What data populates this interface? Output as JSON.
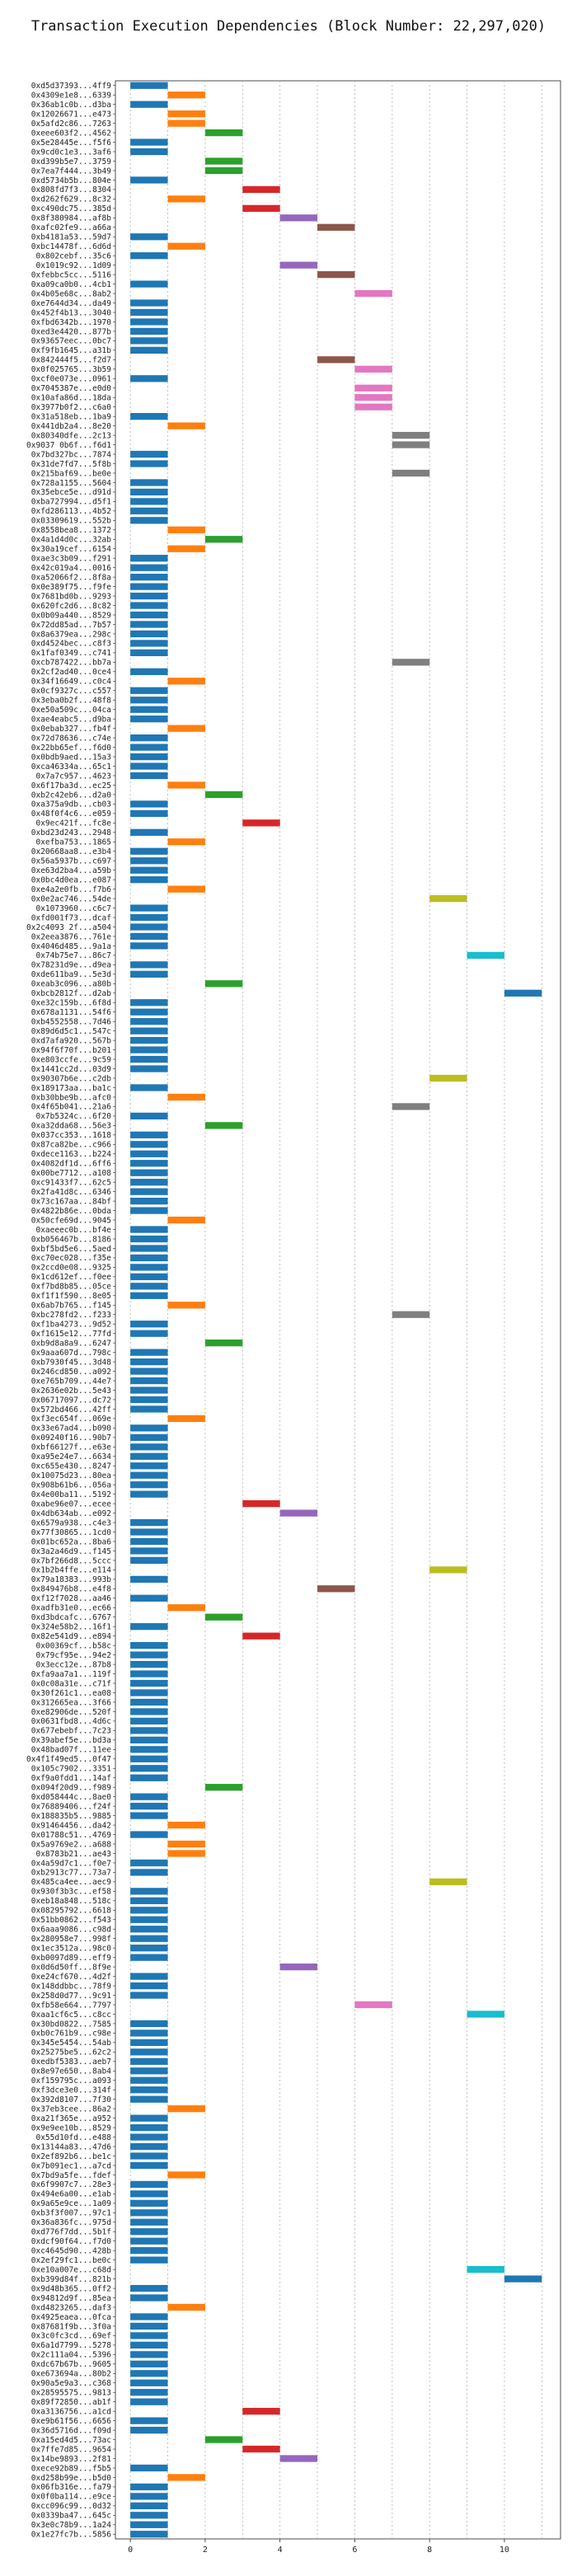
{
  "chart_data": {
    "type": "bar",
    "subtype": "gantt",
    "title": "Transaction Execution Dependencies (Block Number: 22,297,020)",
    "xlabel": "",
    "ylabel": "",
    "xlim": [
      -0.4,
      11.5
    ],
    "x_ticks": [
      0,
      2,
      4,
      6,
      8,
      10
    ],
    "x_tick_labels": [
      "0",
      "2",
      "4",
      "6",
      "8",
      "10"
    ],
    "grid": true,
    "legend": "none",
    "bar_duration": 1,
    "palette": [
      "#1f77b4",
      "#ff7f0e",
      "#2ca02c",
      "#d62728",
      "#9467bd",
      "#8c564b",
      "#e377c2",
      "#7f7f7f",
      "#bcbd22",
      "#17becf"
    ],
    "transactions": [
      {
        "label": "0xd5d37393...4ff9",
        "start": 0
      },
      {
        "label": "0x4309e1e8...6339",
        "start": 1
      },
      {
        "label": "0x36ab1c0b...d3ba",
        "start": 0
      },
      {
        "label": "0x12026671...e473",
        "start": 1
      },
      {
        "label": "0x5afd2c86...7263",
        "start": 1
      },
      {
        "label": "0xeee603f2...4562",
        "start": 2
      },
      {
        "label": "0x5e28445e...f5f6",
        "start": 0
      },
      {
        "label": "0x9cd0c1e3...3af6",
        "start": 0
      },
      {
        "label": "0xd399b5e7...3759",
        "start": 2
      },
      {
        "label": "0x7ea7f444...3b49",
        "start": 2
      },
      {
        "label": "0xd5734b5b...804e",
        "start": 0
      },
      {
        "label": "0x808fd7f3...8304",
        "start": 3
      },
      {
        "label": "0xd262f629...8c32",
        "start": 1
      },
      {
        "label": "0xc490dc75...385d",
        "start": 3
      },
      {
        "label": "0x8f380984...af8b",
        "start": 4
      },
      {
        "label": "0xafc02fe9...a66a",
        "start": 5
      },
      {
        "label": "0xb4181a53...59d7",
        "start": 0
      },
      {
        "label": "0xbc14478f...6d6d",
        "start": 1
      },
      {
        "label": "0x802cebf...35c6",
        "start": 0
      },
      {
        "label": "0x1019c92...1d09",
        "start": 4
      },
      {
        "label": "0xfebbc5cc...5116",
        "start": 5
      },
      {
        "label": "0xa09ca0b0...4cb1",
        "start": 0
      },
      {
        "label": "0x4b05e68c...8ab2",
        "start": 6
      },
      {
        "label": "0xe7644d34...da49",
        "start": 0
      },
      {
        "label": "0x452f4b13...3040",
        "start": 0
      },
      {
        "label": "0xfbd6342b...1970",
        "start": 0
      },
      {
        "label": "0xed3e4420...877b",
        "start": 0
      },
      {
        "label": "0x93657eec...0bc7",
        "start": 0
      },
      {
        "label": "0xf9fb1645...a31b",
        "start": 0
      },
      {
        "label": "0x842444f5...f2d7",
        "start": 5
      },
      {
        "label": "0x0f025765...3b59",
        "start": 6
      },
      {
        "label": "0xcf0e073e...0961",
        "start": 0
      },
      {
        "label": "0x7045387e...e0d0",
        "start": 6
      },
      {
        "label": "0x10afa86d...18da",
        "start": 6
      },
      {
        "label": "0x3977b0f2...c6a0",
        "start": 6
      },
      {
        "label": "0x31a518eb...1ba9",
        "start": 0
      },
      {
        "label": "0x441db2a4...8e20",
        "start": 1
      },
      {
        "label": "0x80340dfe...2c13",
        "start": 7
      },
      {
        "label": "0x9037 0b6f...f6d1",
        "start": 7
      },
      {
        "label": "0x7bd327bc...7874",
        "start": 0
      },
      {
        "label": "0x31de7fd7...5f8b",
        "start": 0
      },
      {
        "label": "0x215baf69...be0e",
        "start": 7
      },
      {
        "label": "0x728a1155...5604",
        "start": 0
      },
      {
        "label": "0x35ebce5e...d91d",
        "start": 0
      },
      {
        "label": "0xba727994...d5f1",
        "start": 0
      },
      {
        "label": "0xfd286113...4b52",
        "start": 0
      },
      {
        "label": "0x03309619...552b",
        "start": 0
      },
      {
        "label": "0x8558bea8...1372",
        "start": 1
      },
      {
        "label": "0x4a1d4d0c...32ab",
        "start": 2
      },
      {
        "label": "0x30a19cef...6154",
        "start": 1
      },
      {
        "label": "0xae3c3b09...f291",
        "start": 0
      },
      {
        "label": "0x42c019a4...0016",
        "start": 0
      },
      {
        "label": "0xa52066f2...8f8a",
        "start": 0
      },
      {
        "label": "0x0e389f75...f9fe",
        "start": 0
      },
      {
        "label": "0x7681bd0b...9293",
        "start": 0
      },
      {
        "label": "0x620fc2d6...8c82",
        "start": 0
      },
      {
        "label": "0x0b09a440...8529",
        "start": 0
      },
      {
        "label": "0x72dd85ad...7b57",
        "start": 0
      },
      {
        "label": "0x8a6379ea...298c",
        "start": 0
      },
      {
        "label": "0xd4524bec...c8f3",
        "start": 0
      },
      {
        "label": "0x1faf0349...c741",
        "start": 0
      },
      {
        "label": "0xcb787422...bb7a",
        "start": 7
      },
      {
        "label": "0x2cf2ad40...0ce4",
        "start": 0
      },
      {
        "label": "0x34f16649...c0c4",
        "start": 1
      },
      {
        "label": "0x0cf9327c...c557",
        "start": 0
      },
      {
        "label": "0x3eba0b2f...48f8",
        "start": 0
      },
      {
        "label": "0xe50a509c...04ca",
        "start": 0
      },
      {
        "label": "0xae4eabc5...d9ba",
        "start": 0
      },
      {
        "label": "0x0ebab327...fb4f",
        "start": 1
      },
      {
        "label": "0x72d78636...c74e",
        "start": 0
      },
      {
        "label": "0x22bb65ef...f6d0",
        "start": 0
      },
      {
        "label": "0x0bdb9aed...15a3",
        "start": 0
      },
      {
        "label": "0xca46334a...65c1",
        "start": 0
      },
      {
        "label": "0x7a7c957...4623",
        "start": 0
      },
      {
        "label": "0x6f17ba3d...ec25",
        "start": 1
      },
      {
        "label": "0xb2c42eb6...d2a0",
        "start": 2
      },
      {
        "label": "0xa375a9db...cb03",
        "start": 0
      },
      {
        "label": "0x48f0f4c6...e059",
        "start": 0
      },
      {
        "label": "0x9ec421f...fc8e",
        "start": 3
      },
      {
        "label": "0xbd23d243...2948",
        "start": 0
      },
      {
        "label": "0xefba753...1865",
        "start": 1
      },
      {
        "label": "0x20668aa8...e3b4",
        "start": 0
      },
      {
        "label": "0x56a5937b...c697",
        "start": 0
      },
      {
        "label": "0xe63d2ba4...a59b",
        "start": 0
      },
      {
        "label": "0x0bc4d0ea...e087",
        "start": 0
      },
      {
        "label": "0xe4a2e0fb...f7b6",
        "start": 1
      },
      {
        "label": "0x0e2ac746...54de",
        "start": 8
      },
      {
        "label": "0x1073960...c6c7",
        "start": 0
      },
      {
        "label": "0xfd001f73...dcaf",
        "start": 0
      },
      {
        "label": "0x2c4093 2f...a504",
        "start": 0
      },
      {
        "label": "0x2eea3876...761e",
        "start": 0
      },
      {
        "label": "0x4046d485...9a1a",
        "start": 0
      },
      {
        "label": "0x74b75e7...86c7",
        "start": 9
      },
      {
        "label": "0x78231d9e...d9ea",
        "start": 0
      },
      {
        "label": "0xde611ba9...5e3d",
        "start": 0
      },
      {
        "label": "0xeab3c096...a80b",
        "start": 2
      },
      {
        "label": "0xbcb2812f...d2ab",
        "start": 10
      },
      {
        "label": "0xe32c159b...6f8d",
        "start": 0
      },
      {
        "label": "0x678a1131...54f6",
        "start": 0
      },
      {
        "label": "0xb4552558...7d46",
        "start": 0
      },
      {
        "label": "0x89d6d5c1...547c",
        "start": 0
      },
      {
        "label": "0xd7afa920...567b",
        "start": 0
      },
      {
        "label": "0x94f6f70f...b201",
        "start": 0
      },
      {
        "label": "0xe803ccfe...9c59",
        "start": 0
      },
      {
        "label": "0x1441cc2d...03d9",
        "start": 0
      },
      {
        "label": "0x90307b6e...c2db",
        "start": 8
      },
      {
        "label": "0x189173aa...ba1c",
        "start": 0
      },
      {
        "label": "0xb30bbe9b...afc0",
        "start": 1
      },
      {
        "label": "0x4f65b041...21a6",
        "start": 7
      },
      {
        "label": "0x7b5324c...6f20",
        "start": 0
      },
      {
        "label": "0xa32dda68...56e3",
        "start": 2
      },
      {
        "label": "0x037cc353...1618",
        "start": 0
      },
      {
        "label": "0x87ca82be...c966",
        "start": 0
      },
      {
        "label": "0xdece1163...b224",
        "start": 0
      },
      {
        "label": "0x4082df1d...6ff6",
        "start": 0
      },
      {
        "label": "0x00be7712...a108",
        "start": 0
      },
      {
        "label": "0xc91433f7...62c5",
        "start": 0
      },
      {
        "label": "0x2fa41d8c...6346",
        "start": 0
      },
      {
        "label": "0x73c167aa...84bf",
        "start": 0
      },
      {
        "label": "0x4822b86e...0bda",
        "start": 0
      },
      {
        "label": "0x50cfe69d...9045",
        "start": 1
      },
      {
        "label": "0xaeeec0b...bf4e",
        "start": 0
      },
      {
        "label": "0xb056467b...8186",
        "start": 0
      },
      {
        "label": "0xbf5bd5e6...5aed",
        "start": 0
      },
      {
        "label": "0xc70ec028...f35e",
        "start": 0
      },
      {
        "label": "0x2ccd0e08...9325",
        "start": 0
      },
      {
        "label": "0x1cd612ef...f0ee",
        "start": 0
      },
      {
        "label": "0xf7bd8b85...05ce",
        "start": 0
      },
      {
        "label": "0xf1f1f590...8e05",
        "start": 0
      },
      {
        "label": "0x6ab7b765...f145",
        "start": 1
      },
      {
        "label": "0xbc278fd2...f233",
        "start": 7
      },
      {
        "label": "0xf1ba4273...9d52",
        "start": 0
      },
      {
        "label": "0xf1615e12...77fd",
        "start": 0
      },
      {
        "label": "0xb9d8a8a9...6247",
        "start": 2
      },
      {
        "label": "0x9aaa607d...798c",
        "start": 0
      },
      {
        "label": "0xb7930f45...3d48",
        "start": 0
      },
      {
        "label": "0x246cd850...a092",
        "start": 0
      },
      {
        "label": "0xe765b709...44e7",
        "start": 0
      },
      {
        "label": "0x2636e02b...5e43",
        "start": 0
      },
      {
        "label": "0x06717097...dc72",
        "start": 0
      },
      {
        "label": "0x572bd466...42ff",
        "start": 0
      },
      {
        "label": "0xf3ec654f...069e",
        "start": 1
      },
      {
        "label": "0x33e67ad4...b090",
        "start": 0
      },
      {
        "label": "0x09240f16...90b7",
        "start": 0
      },
      {
        "label": "0xbf66127f...e63e",
        "start": 0
      },
      {
        "label": "0xa95e24e7...6634",
        "start": 0
      },
      {
        "label": "0xc655e430...8247",
        "start": 0
      },
      {
        "label": "0x10075d23...80ea",
        "start": 0
      },
      {
        "label": "0x908b61b6...056a",
        "start": 0
      },
      {
        "label": "0x4e00ba11...5192",
        "start": 0
      },
      {
        "label": "0xabe96e07...ecee",
        "start": 3
      },
      {
        "label": "0x4db634ab...e092",
        "start": 4
      },
      {
        "label": "0x6579a938...c4e3",
        "start": 0
      },
      {
        "label": "0x77f30865...1cd0",
        "start": 0
      },
      {
        "label": "0x01bc652a...8ba6",
        "start": 0
      },
      {
        "label": "0x3a2a46d9...f145",
        "start": 0
      },
      {
        "label": "0x7bf266d8...5ccc",
        "start": 0
      },
      {
        "label": "0x1b2b4ffe...e114",
        "start": 8
      },
      {
        "label": "0x79a18383...993b",
        "start": 0
      },
      {
        "label": "0x849476b8...e4f8",
        "start": 5
      },
      {
        "label": "0xf12f7028...aa46",
        "start": 0
      },
      {
        "label": "0xadfb31e0...ec66",
        "start": 1
      },
      {
        "label": "0xd3bdcafc...6767",
        "start": 2
      },
      {
        "label": "0x324e58b2...16f1",
        "start": 0
      },
      {
        "label": "0x82e541d9...e894",
        "start": 3
      },
      {
        "label": "0x00369cf...b58c",
        "start": 0
      },
      {
        "label": "0x79cf95e...94e2",
        "start": 0
      },
      {
        "label": "0x3ecc12e...87b8",
        "start": 0
      },
      {
        "label": "0xfa9aa7a1...119f",
        "start": 0
      },
      {
        "label": "0x0c08a31e...c71f",
        "start": 0
      },
      {
        "label": "0x30f261c1...ea08",
        "start": 0
      },
      {
        "label": "0x312665ea...3f66",
        "start": 0
      },
      {
        "label": "0xe82906de...520f",
        "start": 0
      },
      {
        "label": "0x0631fbd8...4d6c",
        "start": 0
      },
      {
        "label": "0x677ebebf...7c23",
        "start": 0
      },
      {
        "label": "0x39abef5e...bd3a",
        "start": 0
      },
      {
        "label": "0x48bad07f...11ee",
        "start": 0
      },
      {
        "label": "0x4f1f49ed5...0f47",
        "start": 0
      },
      {
        "label": "0x105c7902...3351",
        "start": 0
      },
      {
        "label": "0xf9a0fdd1...14af",
        "start": 0
      },
      {
        "label": "0x094f20d9...f989",
        "start": 2
      },
      {
        "label": "0xd058444c...8ae0",
        "start": 0
      },
      {
        "label": "0x76889406...f24f",
        "start": 0
      },
      {
        "label": "0x188835b5...9885",
        "start": 0
      },
      {
        "label": "0x91464456...da42",
        "start": 1
      },
      {
        "label": "0x01788c51...4769",
        "start": 0
      },
      {
        "label": "0x5a9769e2...a688",
        "start": 1
      },
      {
        "label": "0x8783b21...ae43",
        "start": 1
      },
      {
        "label": "0x4a59d7c1...f0e7",
        "start": 0
      },
      {
        "label": "0xb2913c77...73a7",
        "start": 0
      },
      {
        "label": "0x485ca4ee...aec9",
        "start": 8
      },
      {
        "label": "0x930f3b3c...ef58",
        "start": 0
      },
      {
        "label": "0xeb18a848...518c",
        "start": 0
      },
      {
        "label": "0x08295792...6618",
        "start": 0
      },
      {
        "label": "0x51bb0862...f543",
        "start": 0
      },
      {
        "label": "0x6aaa9086...c98d",
        "start": 0
      },
      {
        "label": "0x280958e7...998f",
        "start": 0
      },
      {
        "label": "0x1ec3512a...98c0",
        "start": 0
      },
      {
        "label": "0xb0097d89...eff9",
        "start": 0
      },
      {
        "label": "0x0d6d50ff...8f9e",
        "start": 4
      },
      {
        "label": "0xe24cf670...4d2f",
        "start": 0
      },
      {
        "label": "0x148ddbbc...78f9",
        "start": 0
      },
      {
        "label": "0x258d0d77...9c91",
        "start": 0
      },
      {
        "label": "0xfb58e664...7797",
        "start": 6
      },
      {
        "label": "0xaa1cf6c5...c8cc",
        "start": 9
      },
      {
        "label": "0x30bd0822...7585",
        "start": 0
      },
      {
        "label": "0xb0c761b9...c98e",
        "start": 0
      },
      {
        "label": "0x345e5454...54ab",
        "start": 0
      },
      {
        "label": "0x25275be5...62c2",
        "start": 0
      },
      {
        "label": "0xedbf5383...aeb7",
        "start": 0
      },
      {
        "label": "0x8e97e650...8ab4",
        "start": 0
      },
      {
        "label": "0xf159795c...a093",
        "start": 0
      },
      {
        "label": "0xf3dce3e0...314f",
        "start": 0
      },
      {
        "label": "0x392d8107...7f30",
        "start": 0
      },
      {
        "label": "0x37eb3cee...86a2",
        "start": 1
      },
      {
        "label": "0xa21f365e...a952",
        "start": 0
      },
      {
        "label": "0x9e9ee10b...8529",
        "start": 0
      },
      {
        "label": "0x55d10fd...e488",
        "start": 0
      },
      {
        "label": "0x13144a83...47d6",
        "start": 0
      },
      {
        "label": "0x2ef892b6...be1c",
        "start": 0
      },
      {
        "label": "0x7b091ec1...a7cd",
        "start": 0
      },
      {
        "label": "0x7bd9a5fe...fdef",
        "start": 1
      },
      {
        "label": "0x6f9907c7...28e3",
        "start": 0
      },
      {
        "label": "0x494e6a00...e1ab",
        "start": 0
      },
      {
        "label": "0x9a65e9ce...1a09",
        "start": 0
      },
      {
        "label": "0xb3f3f007...97c1",
        "start": 0
      },
      {
        "label": "0x36a836fc...975d",
        "start": 0
      },
      {
        "label": "0xd776f7dd...5b1f",
        "start": 0
      },
      {
        "label": "0xdcf90f64...f7d0",
        "start": 0
      },
      {
        "label": "0xc4645d90...428b",
        "start": 0
      },
      {
        "label": "0x2ef29fc1...be0c",
        "start": 0
      },
      {
        "label": "0xe10a007e...c68d",
        "start": 9
      },
      {
        "label": "0xb399d84f...821b",
        "start": 10
      },
      {
        "label": "0x9d48b365...0ff2",
        "start": 0
      },
      {
        "label": "0x94812d9f...85ea",
        "start": 0
      },
      {
        "label": "0xd4823265...daf3",
        "start": 1
      },
      {
        "label": "0x4925eaea...0fca",
        "start": 0
      },
      {
        "label": "0x87681f9b...3f0a",
        "start": 0
      },
      {
        "label": "0x3c0fc3cd...69ef",
        "start": 0
      },
      {
        "label": "0x6a1d7799...5278",
        "start": 0
      },
      {
        "label": "0x2c111a04...5396",
        "start": 0
      },
      {
        "label": "0xdc67b67b...9605",
        "start": 0
      },
      {
        "label": "0xe673694a...80b2",
        "start": 0
      },
      {
        "label": "0x90a5e9a3...c368",
        "start": 0
      },
      {
        "label": "0x28595575...9813",
        "start": 0
      },
      {
        "label": "0x89f72850...ab1f",
        "start": 0
      },
      {
        "label": "0xa3136756...a1cd",
        "start": 3
      },
      {
        "label": "0xe9b61f56...6656",
        "start": 0
      },
      {
        "label": "0x36d5716d...f09d",
        "start": 0
      },
      {
        "label": "0xa15ed4d5...73ac",
        "start": 2
      },
      {
        "label": "0x7ffe7d85...9654",
        "start": 3
      },
      {
        "label": "0x14be9893...2f81",
        "start": 4
      },
      {
        "label": "0xece92b89...f5b5",
        "start": 0
      },
      {
        "label": "0xd258b99e...b5d0",
        "start": 1
      },
      {
        "label": "0x06fb316e...fa79",
        "start": 0
      },
      {
        "label": "0x0f0ba114...e9ce",
        "start": 0
      },
      {
        "label": "0xcc096c99...0d32",
        "start": 0
      },
      {
        "label": "0x0339ba47...645c",
        "start": 0
      },
      {
        "label": "0x3e0c78b9...1a24",
        "start": 0
      },
      {
        "label": "0x1e27fc7b...5856",
        "start": 0
      }
    ]
  }
}
